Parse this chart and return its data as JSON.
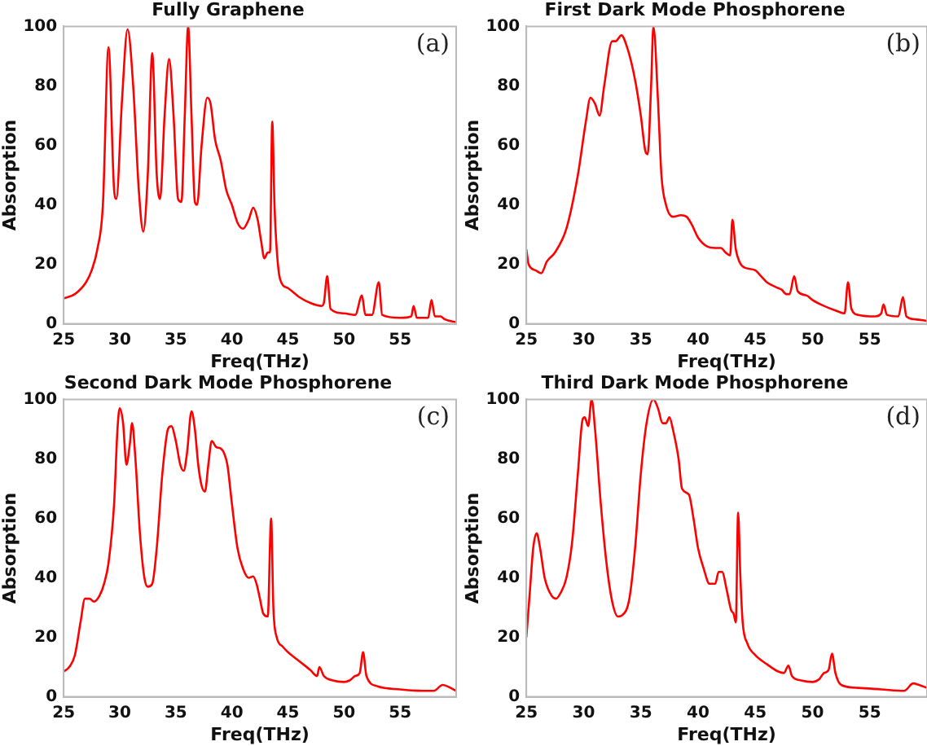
{
  "chart_data": [
    {
      "type": "line",
      "title": "Fully Graphene",
      "xlabel": "Freq(THz)",
      "ylabel": "Absorption",
      "annotations": [
        "(a)"
      ],
      "xlim": [
        25,
        60
      ],
      "ylim": [
        0,
        100
      ],
      "xticks": [
        25,
        30,
        35,
        40,
        45,
        50,
        55
      ],
      "yticks": [
        0,
        20,
        40,
        60,
        80,
        100
      ],
      "grid": false,
      "legend": false,
      "marker": "none",
      "line_style": "solid",
      "x": [
        25,
        26,
        27,
        27.5,
        28,
        28.5,
        29,
        29.5,
        29.7,
        30.2,
        30.7,
        31.2,
        31.7,
        32.1,
        32.5,
        32.9,
        33.3,
        33.6,
        34.0,
        34.4,
        34.8,
        35.2,
        35.5,
        35.8,
        36.1,
        36.4,
        36.7,
        36.9,
        37.3,
        37.8,
        38.1,
        38.5,
        39,
        39.5,
        40,
        40.5,
        41,
        41.5,
        41.9,
        42.3,
        42.6,
        42.9,
        43.2,
        43.4,
        43.6,
        43.8,
        44,
        44.3,
        45,
        46,
        47,
        48,
        48.2,
        48.5,
        48.8,
        50,
        51,
        51.6,
        51.9,
        52.5,
        53.1,
        53.4,
        55,
        56,
        56.2,
        56.5,
        57.5,
        57.8,
        58.1,
        58.6,
        59,
        60
      ],
      "series": [
        {
          "color": "#ff0000",
          "values": [
            8.5,
            10,
            14,
            18,
            25,
            40,
            93,
            45,
            42,
            75,
            99,
            80,
            45,
            31,
            50,
            91,
            50,
            42,
            70,
            89,
            70,
            42,
            41,
            70,
            100,
            70,
            41,
            40,
            60,
            76,
            74,
            62,
            55,
            45,
            40,
            34,
            32,
            35,
            39,
            35,
            28,
            22,
            24,
            24,
            68,
            40,
            25,
            15,
            12,
            9,
            7,
            6,
            7,
            16,
            5,
            3.5,
            3,
            9.5,
            3,
            3,
            14,
            3,
            2,
            2.5,
            6,
            2,
            2,
            8,
            2.5,
            2.5,
            1.5,
            0.5
          ]
        }
      ]
    },
    {
      "type": "line",
      "title": "First Dark Mode Phosphorene",
      "xlabel": "Freq(THz)",
      "ylabel": "Absorption",
      "annotations": [
        "(b)"
      ],
      "xlim": [
        25,
        60
      ],
      "ylim": [
        0,
        100
      ],
      "xticks": [
        25,
        30,
        35,
        40,
        45,
        50,
        55
      ],
      "yticks": [
        0,
        20,
        40,
        60,
        80,
        100
      ],
      "grid": false,
      "legend": false,
      "marker": "none",
      "line_style": "solid",
      "x": [
        25,
        25.2,
        25.8,
        26.3,
        26.8,
        27.5,
        28.5,
        29.5,
        30.2,
        30.6,
        31.0,
        31.4,
        31.8,
        32.5,
        32.8,
        33.3,
        33.8,
        34.5,
        35,
        35.4,
        35.6,
        35.9,
        36.1,
        36.5,
        36.8,
        37.2,
        37.8,
        38.5,
        39,
        39.5,
        40,
        40.8,
        41.5,
        42,
        42.4,
        42.8,
        43,
        43.3,
        43.6,
        44,
        45,
        45.5,
        46,
        47,
        47.3,
        47.7,
        48,
        48.4,
        48.7,
        49.5,
        50,
        51,
        52,
        52.8,
        53.1,
        53.4,
        54,
        55.5,
        56,
        56.2,
        56.5,
        57.5,
        57.9,
        58.2,
        59,
        60
      ],
      "series": [
        {
          "color": "#ff0000",
          "values": [
            25,
            20,
            18,
            17,
            21,
            24,
            32,
            50,
            68,
            76,
            74,
            70,
            80,
            95,
            95,
            97,
            93,
            82,
            70,
            58,
            57,
            80,
            100,
            75,
            50,
            40,
            36,
            36.5,
            36,
            33,
            29,
            26,
            25.5,
            25.5,
            24,
            23,
            35,
            25,
            21,
            19,
            18,
            16,
            14,
            12,
            11.5,
            10,
            10,
            16,
            11,
            9.5,
            8,
            6,
            4.5,
            3.5,
            14,
            5,
            3,
            2.5,
            3.5,
            6.5,
            3,
            2.5,
            9,
            2.5,
            1.5,
            1
          ]
        }
      ]
    },
    {
      "type": "line",
      "title": "Second Dark Mode Phosphorene",
      "xlabel": "Freq(THz)",
      "ylabel": "Absorption",
      "annotations": [
        "(c)"
      ],
      "xlim": [
        25,
        60
      ],
      "ylim": [
        0,
        100
      ],
      "xticks": [
        25,
        30,
        35,
        40,
        45,
        50,
        55
      ],
      "yticks": [
        0,
        20,
        40,
        60,
        80,
        100
      ],
      "grid": false,
      "legend": false,
      "marker": "none",
      "line_style": "solid",
      "x": [
        25,
        25.5,
        26,
        26.5,
        26.9,
        27.3,
        27.7,
        28.2,
        28.6,
        29,
        29.5,
        29.8,
        30,
        30.3,
        30.6,
        30.9,
        31.1,
        31.4,
        31.8,
        32.2,
        32.5,
        32.9,
        33.3,
        33.8,
        34.3,
        34.6,
        35,
        35.4,
        35.7,
        36.0,
        36.4,
        36.7,
        37.0,
        37.3,
        37.6,
        37.9,
        38.2,
        38.6,
        39,
        39.3,
        39.6,
        40,
        40.5,
        41,
        41.5,
        41.9,
        42.2,
        42.5,
        42.8,
        43.2,
        43.5,
        43.7,
        44,
        44.5,
        45,
        46,
        47,
        47.6,
        47.8,
        48.2,
        49,
        50,
        50.5,
        51,
        51.4,
        51.7,
        52,
        53,
        55,
        57,
        58,
        58.8,
        59.5,
        60
      ],
      "series": [
        {
          "color": "#ff0000",
          "values": [
            8.5,
            10,
            14,
            25,
            33,
            33,
            32,
            34,
            38,
            45,
            65,
            90,
            97,
            92,
            78,
            85,
            92,
            80,
            55,
            40,
            37,
            38,
            50,
            75,
            90,
            91,
            86,
            78,
            76,
            82,
            96,
            90,
            78,
            71,
            69,
            78,
            86,
            84,
            83.5,
            82,
            78,
            65,
            50,
            43,
            40,
            40.5,
            38,
            33,
            28,
            27,
            60,
            30,
            20,
            17,
            15,
            12,
            9,
            7,
            10,
            7,
            5.5,
            5,
            5.5,
            7,
            8,
            15,
            7,
            3.5,
            2.5,
            2,
            2,
            4,
            3,
            2
          ]
        }
      ]
    },
    {
      "type": "line",
      "title": "Third Dark Mode Phosphorene",
      "xlabel": "Freq(THz)",
      "ylabel": "Absorption",
      "annotations": [
        "(d)"
      ],
      "xlim": [
        25,
        60
      ],
      "ylim": [
        0,
        100
      ],
      "xticks": [
        25,
        30,
        35,
        40,
        45,
        50,
        55
      ],
      "yticks": [
        0,
        20,
        40,
        60,
        80,
        100
      ],
      "grid": false,
      "legend": false,
      "marker": "none",
      "line_style": "solid",
      "x": [
        25,
        25.3,
        25.6,
        25.9,
        26.2,
        26.6,
        27.2,
        27.6,
        28,
        28.5,
        29,
        29.5,
        29.9,
        30.1,
        30.4,
        30.7,
        31,
        31.5,
        32,
        32.5,
        33,
        33.4,
        34,
        34.5,
        35,
        35.5,
        36.1,
        36.5,
        36.9,
        37.2,
        37.5,
        37.8,
        38.3,
        38.6,
        39.2,
        39.6,
        40,
        40.5,
        41,
        41.5,
        41.8,
        42.1,
        42.5,
        42.9,
        43.1,
        43.3,
        43.5,
        43.7,
        43.9,
        44.3,
        45,
        46,
        47,
        47.5,
        47.9,
        48.2,
        49,
        50,
        50.6,
        51,
        51.4,
        51.7,
        52,
        52.5,
        54,
        56,
        58,
        58.8,
        59.3,
        60
      ],
      "series": [
        {
          "color": "#ff0000",
          "values": [
            20,
            35,
            50,
            55,
            50,
            40,
            34,
            33,
            35,
            40,
            52,
            75,
            93,
            94,
            91,
            100,
            90,
            65,
            45,
            32,
            27,
            27.5,
            33,
            50,
            75,
            92,
            100,
            97,
            92,
            92,
            94,
            90,
            80,
            70,
            68,
            60,
            50,
            43,
            38,
            38,
            42,
            42,
            36,
            29,
            28,
            25,
            62,
            40,
            25,
            18,
            14,
            11,
            8.5,
            8,
            10.5,
            7,
            5.5,
            5,
            6,
            8,
            9,
            14.5,
            8,
            4,
            3,
            2.5,
            2,
            4.5,
            4,
            3
          ]
        }
      ]
    }
  ]
}
